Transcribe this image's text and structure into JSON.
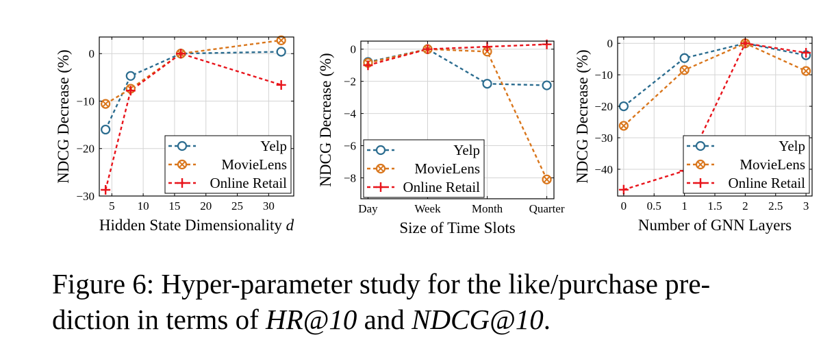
{
  "caption": {
    "part1": "Figure 6: Hyper-parameter study for the like/purchase pre-",
    "part2": "diction in terms of ",
    "metric1": "HR@10",
    "and": " and ",
    "metric2": "NDCG@10",
    "end": "."
  },
  "colors": {
    "Yelp": "#2b6c8f",
    "MovieLens": "#d9761c",
    "Online Retail": "#e8141b"
  },
  "legend": [
    "Yelp",
    "MovieLens",
    "Online Retail"
  ],
  "chart_data": [
    {
      "type": "line",
      "xlabel": "Hidden State Dimensionality",
      "xlabel_var": "d",
      "ylabel": "NDCG Decrease (%)",
      "xlim": [
        3,
        34
      ],
      "ylim": [
        -30,
        3.5
      ],
      "xticks": [
        5,
        10,
        15,
        20,
        25,
        30
      ],
      "yticks": [
        0,
        -10,
        -20,
        -30
      ],
      "legend_position": "bottom-right",
      "grid": true,
      "series": [
        {
          "name": "Yelp",
          "marker": "circle",
          "x": [
            4,
            8,
            16,
            32
          ],
          "y": [
            -16,
            -4.7,
            0,
            0.4
          ]
        },
        {
          "name": "MovieLens",
          "marker": "otimes",
          "x": [
            4,
            8,
            16,
            32
          ],
          "y": [
            -10.6,
            -7.4,
            0,
            2.8
          ]
        },
        {
          "name": "Online Retail",
          "marker": "plus",
          "x": [
            4,
            8,
            16,
            32
          ],
          "y": [
            -28.7,
            -7.8,
            0,
            -6.6
          ]
        }
      ]
    },
    {
      "type": "line",
      "xlabel": "Size of Time Slots",
      "ylabel": "NDCG Decrease (%)",
      "categories": [
        "Day",
        "Week",
        "Month",
        "Quarter"
      ],
      "ylim": [
        -9.3,
        0.5
      ],
      "yticks": [
        0,
        -2,
        -4,
        -6,
        -8
      ],
      "legend_position": "bottom-left",
      "grid": true,
      "series": [
        {
          "name": "Yelp",
          "marker": "circle",
          "y": [
            -0.8,
            0,
            -2.15,
            -2.25
          ]
        },
        {
          "name": "MovieLens",
          "marker": "otimes",
          "y": [
            -0.85,
            0,
            -0.15,
            -8.1
          ]
        },
        {
          "name": "Online Retail",
          "marker": "plus",
          "y": [
            -1.0,
            0,
            0.15,
            0.3
          ]
        }
      ]
    },
    {
      "type": "line",
      "xlabel": "Number of GNN Layers",
      "ylabel": "NDCG Decrease (%)",
      "xlim": [
        -0.1,
        3.1
      ],
      "ylim": [
        -48.5,
        2
      ],
      "xticks": [
        0,
        0.5,
        1,
        1.5,
        2,
        2.5,
        3
      ],
      "yticks": [
        0,
        -10,
        -20,
        -30,
        -40
      ],
      "legend_position": "bottom-right",
      "grid": true,
      "series": [
        {
          "name": "Yelp",
          "marker": "circle",
          "x": [
            0,
            1,
            2,
            3
          ],
          "y": [
            -20,
            -4.7,
            0,
            -3.8
          ]
        },
        {
          "name": "MovieLens",
          "marker": "otimes",
          "x": [
            0,
            1,
            2,
            3
          ],
          "y": [
            -26.2,
            -8.5,
            0,
            -8.8
          ]
        },
        {
          "name": "Online Retail",
          "marker": "plus",
          "x": [
            0,
            1,
            2,
            3
          ],
          "y": [
            -46.5,
            -40.5,
            0,
            -3
          ]
        }
      ]
    }
  ]
}
